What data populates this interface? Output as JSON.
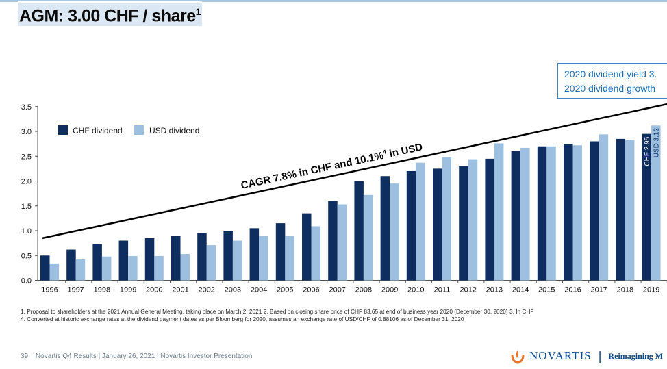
{
  "title": "AGM: 3.00 CHF / share",
  "title_footnote": "1",
  "callout": {
    "line1": "2020 dividend yield 3.",
    "line2": "2020 dividend growth"
  },
  "cagr_label": "CAGR 7.8% in CHF and 10.1%",
  "cagr_footnote": "4",
  "cagr_suffix": " in USD",
  "colors": {
    "chf": "#0d2e5e",
    "usd": "#9dc0e0",
    "accent": "#1a6fb5"
  },
  "chart_data": {
    "type": "bar",
    "categories": [
      "1996",
      "1997",
      "1998",
      "1999",
      "2000",
      "2001",
      "2002",
      "2003",
      "2004",
      "2005",
      "2006",
      "2007",
      "2008",
      "2009",
      "2010",
      "2011",
      "2012",
      "2013",
      "2014",
      "2015",
      "2016",
      "2017",
      "2018",
      "2019"
    ],
    "series": [
      {
        "name": "CHF dividend",
        "values": [
          0.5,
          0.62,
          0.73,
          0.8,
          0.85,
          0.9,
          0.95,
          1.0,
          1.05,
          1.15,
          1.35,
          1.6,
          2.0,
          2.1,
          2.2,
          2.25,
          2.3,
          2.45,
          2.6,
          2.7,
          2.75,
          2.8,
          2.85,
          2.95
        ]
      },
      {
        "name": "USD dividend",
        "values": [
          0.34,
          0.42,
          0.48,
          0.49,
          0.49,
          0.53,
          0.71,
          0.8,
          0.9,
          0.9,
          1.09,
          1.53,
          1.72,
          1.95,
          2.37,
          2.48,
          2.44,
          2.76,
          2.67,
          2.7,
          2.72,
          2.94,
          2.83,
          3.12
        ]
      }
    ],
    "bar_labels": {
      "chf_last": "CHF 2.95",
      "usd_last": "USD 3.12"
    },
    "yticks": [
      "0.0",
      "0.5",
      "1.0",
      "1.5",
      "2.0",
      "2.5",
      "3.0",
      "3.5"
    ],
    "ylim": [
      0,
      3.5
    ],
    "legend_position": "top-left",
    "trend_line": {
      "from": 0.85,
      "to": 3.55
    },
    "grid": false
  },
  "footnotes": {
    "line1": "1. Proposal to shareholders at the 2021 Annual General Meeting, taking place on March 2, 2021    2. Based on closing share price of CHF 83.65 at end of business year 2020 (December 30, 2020)    3. In CHF",
    "line2": "4. Converted at historic exchange rates at the dividend payment dates as per Bloomberg for 2020, assumes an exchange rate of USD/CHF of 0.88106 as of December 31, 2020"
  },
  "footer": {
    "page": "39",
    "text": "Novartis Q4 Results | January 26, 2021 | Novartis Investor Presentation"
  },
  "logo": {
    "name": "NOVARTIS",
    "separator": "|",
    "tagline": "Reimagining M"
  }
}
